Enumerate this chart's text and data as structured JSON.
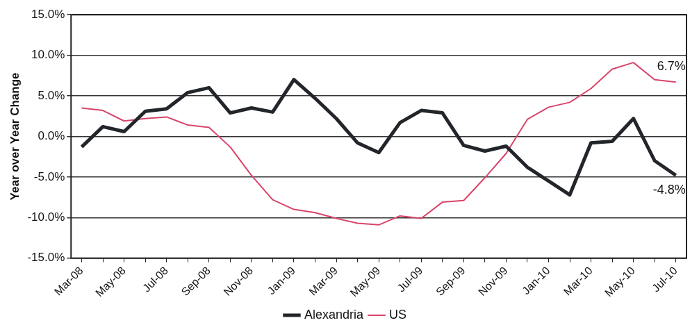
{
  "chart_data": {
    "type": "line",
    "ylabel": "Year over Year Change",
    "categories": [
      "Mar-08",
      null,
      "May-08",
      null,
      "Jul-08",
      null,
      "Sep-08",
      null,
      "Nov-08",
      null,
      "Jan-09",
      null,
      "Mar-09",
      null,
      "May-09",
      null,
      "Jul-09",
      null,
      "Sep-09",
      null,
      "Nov-09",
      null,
      "Jan-10",
      null,
      "Mar-10",
      null,
      "May-10",
      null,
      "Jul-10"
    ],
    "series": [
      {
        "name": "Alexandria",
        "color": "#22262a",
        "values": [
          -1.3,
          1.2,
          0.6,
          3.1,
          3.4,
          5.4,
          6.0,
          2.9,
          3.5,
          3.0,
          7.0,
          4.7,
          2.2,
          -0.8,
          -2.0,
          1.7,
          3.2,
          2.9,
          -1.1,
          -1.8,
          -1.2,
          -3.8,
          -5.5,
          -7.2,
          -0.8,
          -0.6,
          2.2,
          -3.0,
          -4.8
        ]
      },
      {
        "name": "US",
        "color": "#d9446a",
        "values": [
          3.5,
          3.2,
          1.9,
          2.2,
          2.4,
          1.4,
          1.1,
          -1.3,
          -4.8,
          -7.8,
          -9.0,
          -9.4,
          -10.1,
          -10.7,
          -10.9,
          -9.8,
          -10.1,
          -8.1,
          -7.9,
          -5.1,
          -2.1,
          2.1,
          3.6,
          4.2,
          5.9,
          8.3,
          9.1,
          7.0,
          6.7
        ]
      }
    ],
    "ylim": [
      -15,
      15
    ],
    "yticks": [
      {
        "value": -15,
        "label": "-15.0%"
      },
      {
        "value": -10,
        "label": "-10.0%"
      },
      {
        "value": -5,
        "label": "-5.0%"
      },
      {
        "value": 0,
        "label": "0.0%"
      },
      {
        "value": 5,
        "label": "5.0%"
      },
      {
        "value": 10,
        "label": "10.0%"
      },
      {
        "value": 15,
        "label": "15.0%"
      }
    ],
    "annotations": [
      {
        "text": "6.7%",
        "x": "Jul-10",
        "y": 6.7
      },
      {
        "text": "-4.8%",
        "x": "Jul-10",
        "y": -4.8
      }
    ],
    "grid": "y",
    "legend": "bottom",
    "marker": "none",
    "line_style": "solid"
  }
}
